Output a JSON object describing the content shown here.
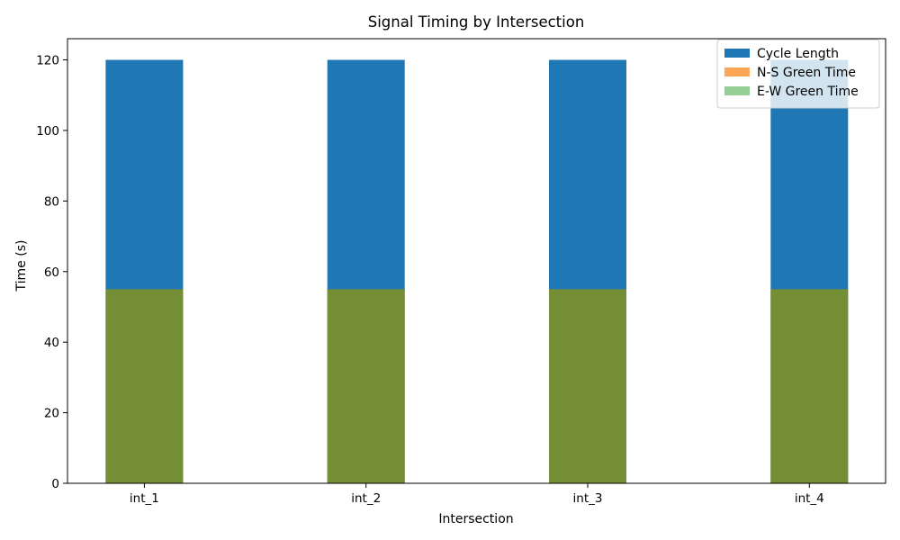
{
  "chart_data": {
    "type": "bar",
    "title": "Signal Timing by Intersection",
    "xlabel": "Intersection",
    "ylabel": "Time (s)",
    "categories": [
      "int_1",
      "int_2",
      "int_3",
      "int_4"
    ],
    "series": [
      {
        "name": "Cycle Length",
        "values": [
          120,
          120,
          120,
          120
        ],
        "color": "#1f77b4",
        "opacity": 1.0
      },
      {
        "name": "N-S Green Time",
        "values": [
          55,
          55,
          55,
          55
        ],
        "color": "#ff7f0e",
        "opacity": 0.7
      },
      {
        "name": "E-W Green Time",
        "values": [
          55,
          55,
          55,
          55
        ],
        "color": "#2ca02c",
        "opacity": 0.5
      }
    ],
    "ylim": [
      0,
      126
    ],
    "yticks": [
      0,
      20,
      40,
      60,
      80,
      100,
      120
    ],
    "grid": false,
    "legend_position": "top-right"
  }
}
